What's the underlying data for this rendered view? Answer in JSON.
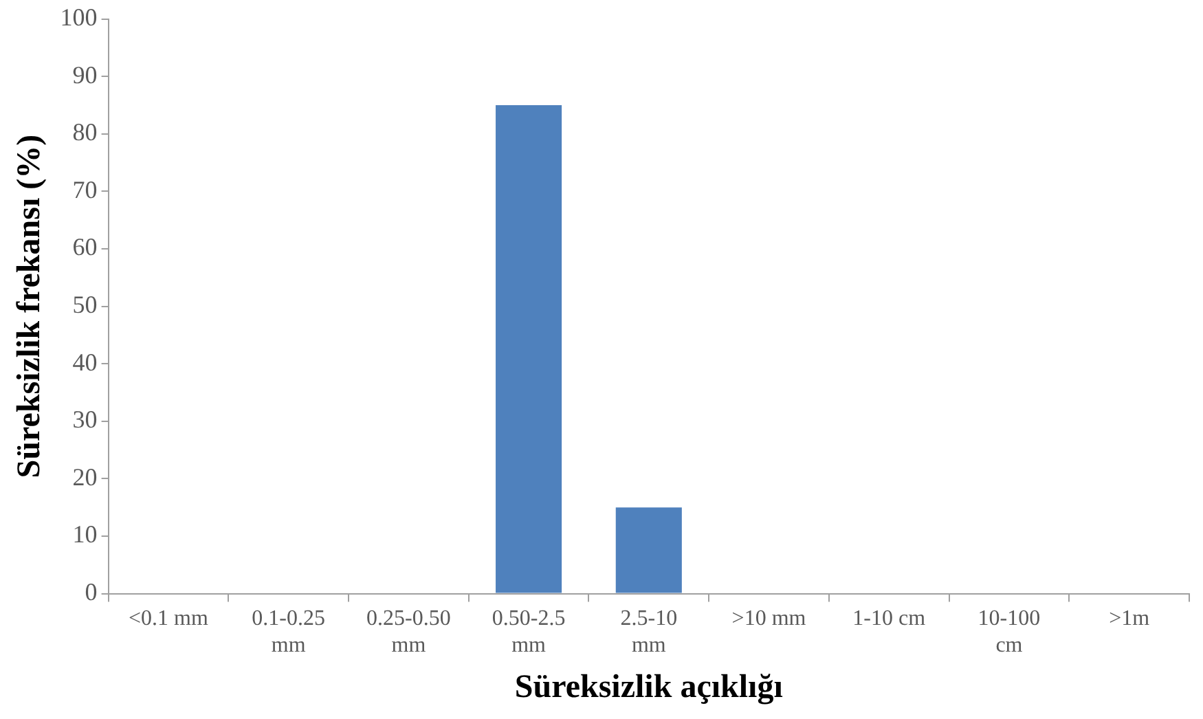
{
  "chart_data": {
    "type": "bar",
    "xlabel": "Süreksizlik açıklığı",
    "ylabel": "Süreksizlik frekansı (%)",
    "categories": [
      "<0.1 mm",
      "0.1-0.25 mm",
      "0.25-0.50 mm",
      "0.50-2.5 mm",
      "2.5-10 mm",
      ">10 mm",
      "1-10 cm",
      "10-100 cm",
      ">1m"
    ],
    "values": [
      0,
      0,
      0,
      85,
      15,
      0,
      0,
      0,
      0
    ],
    "color": "#4f81bd",
    "ylim": [
      0,
      100
    ],
    "yticks": [
      0,
      10,
      20,
      30,
      40,
      50,
      60,
      70,
      80,
      90,
      100
    ],
    "grid": false,
    "legend": false
  }
}
